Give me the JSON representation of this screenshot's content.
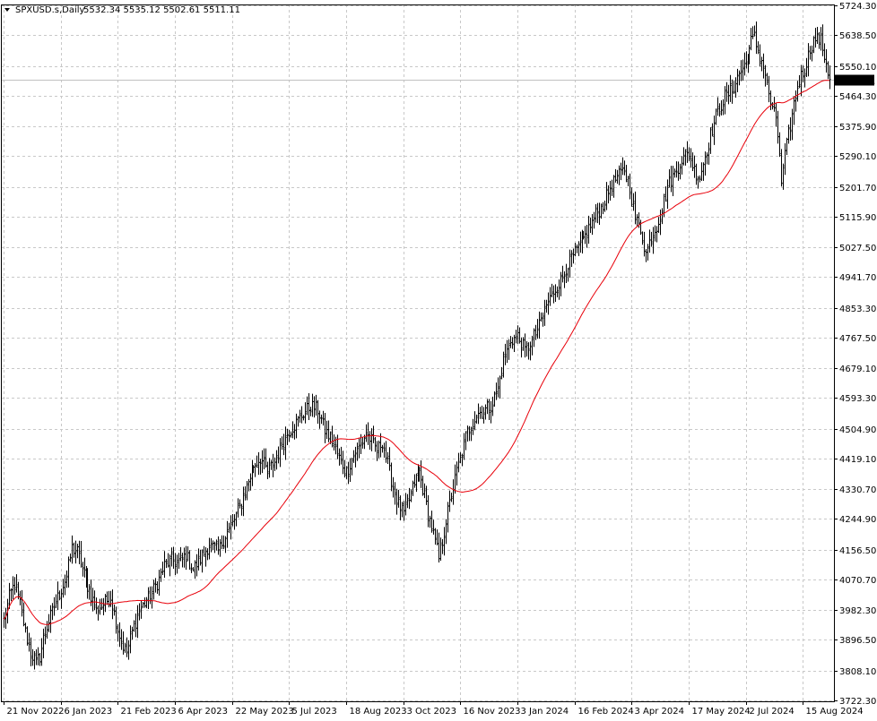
{
  "chart_title": "SPXUSD.s,Daily",
  "ohlc_label": "5532.34 5535.12 5502.61 5511.11",
  "current_price_label": "5511.11",
  "colors": {
    "background": "#ffffff",
    "bars": "#000000",
    "moving_average": "#e8000a",
    "grid": "#c8c8c8",
    "price_line": "#c0c0c0",
    "price_tag_bg": "#000000",
    "price_tag_text": "#ffffff"
  },
  "chart_data": {
    "type": "ohlc",
    "title": "SPXUSD.s,Daily",
    "ylim": [
      3722.3,
      5724.3
    ],
    "y_ticks": [
      "5724.30",
      "5638.50",
      "5550.10",
      "5464.30",
      "5375.90",
      "5290.10",
      "5201.70",
      "5115.90",
      "5027.50",
      "4941.70",
      "4853.30",
      "4767.50",
      "4679.10",
      "4593.30",
      "4504.90",
      "4419.10",
      "4330.70",
      "4244.90",
      "4156.50",
      "4070.70",
      "3982.30",
      "3896.50",
      "3808.10",
      "3722.30"
    ],
    "x_tick_labels": [
      "21 Nov 2022",
      "6 Jan 2023",
      "21 Feb 2023",
      "6 Apr 2023",
      "22 May 2023",
      "5 Jul 2023",
      "18 Aug 2023",
      "3 Oct 2023",
      "16 Nov 2023",
      "3 Jan 2024",
      "16 Feb 2024",
      "3 Apr 2024",
      "17 May 2024",
      "2 Jul 2024",
      "15 Aug 2024"
    ],
    "x_tick_positions": [
      0,
      32,
      64,
      96,
      128,
      160,
      192,
      224,
      256,
      288,
      320,
      352,
      384,
      416,
      448
    ],
    "last_close": 5511.11,
    "close_keypoints": [
      [
        0,
        3950
      ],
      [
        3,
        4020
      ],
      [
        6,
        4060
      ],
      [
        9,
        4000
      ],
      [
        12,
        3920
      ],
      [
        15,
        3860
      ],
      [
        18,
        3830
      ],
      [
        20,
        3850
      ],
      [
        22,
        3900
      ],
      [
        25,
        3950
      ],
      [
        30,
        4020
      ],
      [
        35,
        4080
      ],
      [
        38,
        4160
      ],
      [
        41,
        4150
      ],
      [
        44,
        4100
      ],
      [
        48,
        4040
      ],
      [
        52,
        3980
      ],
      [
        56,
        4000
      ],
      [
        60,
        4020
      ],
      [
        63,
        3950
      ],
      [
        66,
        3890
      ],
      [
        69,
        3860
      ],
      [
        72,
        3920
      ],
      [
        76,
        3980
      ],
      [
        80,
        4010
      ],
      [
        86,
        4060
      ],
      [
        90,
        4110
      ],
      [
        94,
        4130
      ],
      [
        98,
        4120
      ],
      [
        102,
        4140
      ],
      [
        106,
        4100
      ],
      [
        110,
        4130
      ],
      [
        115,
        4170
      ],
      [
        120,
        4150
      ],
      [
        124,
        4200
      ],
      [
        128,
        4230
      ],
      [
        132,
        4280
      ],
      [
        136,
        4340
      ],
      [
        140,
        4400
      ],
      [
        144,
        4420
      ],
      [
        148,
        4380
      ],
      [
        152,
        4410
      ],
      [
        156,
        4460
      ],
      [
        160,
        4500
      ],
      [
        164,
        4520
      ],
      [
        168,
        4550
      ],
      [
        172,
        4570
      ],
      [
        176,
        4560
      ],
      [
        180,
        4500
      ],
      [
        184,
        4470
      ],
      [
        188,
        4420
      ],
      [
        192,
        4380
      ],
      [
        196,
        4430
      ],
      [
        200,
        4460
      ],
      [
        203,
        4490
      ],
      [
        206,
        4470
      ],
      [
        209,
        4440
      ],
      [
        212,
        4470
      ],
      [
        216,
        4380
      ],
      [
        220,
        4300
      ],
      [
        224,
        4260
      ],
      [
        227,
        4300
      ],
      [
        230,
        4350
      ],
      [
        233,
        4380
      ],
      [
        236,
        4310
      ],
      [
        239,
        4240
      ],
      [
        242,
        4180
      ],
      [
        244,
        4130
      ],
      [
        246,
        4180
      ],
      [
        248,
        4240
      ],
      [
        250,
        4290
      ],
      [
        253,
        4360
      ],
      [
        256,
        4420
      ],
      [
        259,
        4480
      ],
      [
        262,
        4520
      ],
      [
        266,
        4550
      ],
      [
        270,
        4560
      ],
      [
        274,
        4580
      ],
      [
        277,
        4620
      ],
      [
        280,
        4700
      ],
      [
        284,
        4760
      ],
      [
        288,
        4770
      ],
      [
        292,
        4730
      ],
      [
        296,
        4760
      ],
      [
        300,
        4800
      ],
      [
        304,
        4860
      ],
      [
        308,
        4900
      ],
      [
        312,
        4930
      ],
      [
        316,
        4980
      ],
      [
        320,
        5010
      ],
      [
        324,
        5040
      ],
      [
        328,
        5080
      ],
      [
        332,
        5120
      ],
      [
        336,
        5150
      ],
      [
        340,
        5200
      ],
      [
        344,
        5230
      ],
      [
        348,
        5250
      ],
      [
        351,
        5200
      ],
      [
        354,
        5110
      ],
      [
        357,
        5080
      ],
      [
        360,
        5010
      ],
      [
        363,
        5060
      ],
      [
        366,
        5090
      ],
      [
        369,
        5140
      ],
      [
        372,
        5200
      ],
      [
        376,
        5240
      ],
      [
        380,
        5280
      ],
      [
        384,
        5300
      ],
      [
        387,
        5250
      ],
      [
        390,
        5230
      ],
      [
        393,
        5290
      ],
      [
        396,
        5350
      ],
      [
        400,
        5420
      ],
      [
        404,
        5460
      ],
      [
        408,
        5480
      ],
      [
        412,
        5530
      ],
      [
        416,
        5560
      ],
      [
        419,
        5620
      ],
      [
        421,
        5630
      ],
      [
        423,
        5590
      ],
      [
        426,
        5550
      ],
      [
        429,
        5470
      ],
      [
        431,
        5420
      ],
      [
        433,
        5400
      ],
      [
        435,
        5300
      ],
      [
        436,
        5200
      ],
      [
        437,
        5260
      ],
      [
        440,
        5350
      ],
      [
        443,
        5440
      ],
      [
        446,
        5510
      ],
      [
        449,
        5540
      ],
      [
        452,
        5600
      ],
      [
        455,
        5630
      ],
      [
        458,
        5620
      ],
      [
        461,
        5560
      ],
      [
        463,
        5511
      ]
    ],
    "series": [
      {
        "name": "Moving Average",
        "kind": "smoothed-close"
      }
    ]
  }
}
